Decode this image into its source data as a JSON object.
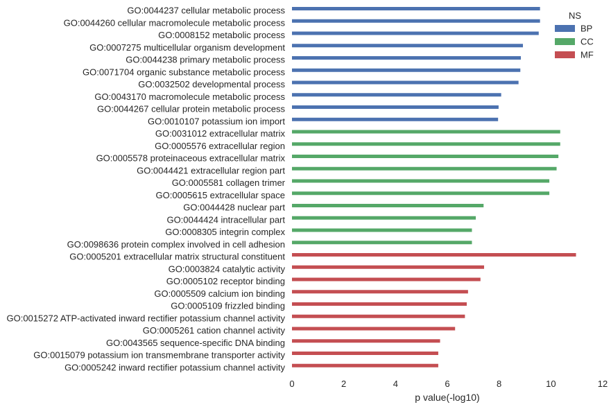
{
  "chart_data": {
    "type": "bar",
    "orientation": "horizontal",
    "xlabel": "p value(-log10)",
    "xlim": [
      0,
      12
    ],
    "xticks": [
      0,
      2,
      4,
      6,
      8,
      10,
      12
    ],
    "grid": false,
    "legend": {
      "title": "NS",
      "placement": "top-right",
      "entries": [
        {
          "name": "BP",
          "color": "#4C72B0"
        },
        {
          "name": "CC",
          "color": "#55A868"
        },
        {
          "name": "MF",
          "color": "#C44E52"
        }
      ]
    },
    "bars": [
      {
        "label": "GO:0044237 cellular metabolic process",
        "value": 9.58,
        "ns": "BP"
      },
      {
        "label": "GO:0044260 cellular macromolecule metabolic process",
        "value": 9.58,
        "ns": "BP"
      },
      {
        "label": "GO:0008152 metabolic process",
        "value": 9.53,
        "ns": "BP"
      },
      {
        "label": "GO:0007275 multicellular organism development",
        "value": 8.92,
        "ns": "BP"
      },
      {
        "label": "GO:0044238 primary metabolic process",
        "value": 8.84,
        "ns": "BP"
      },
      {
        "label": "GO:0071704 organic substance metabolic process",
        "value": 8.82,
        "ns": "BP"
      },
      {
        "label": "GO:0032502 developmental process",
        "value": 8.75,
        "ns": "BP"
      },
      {
        "label": "GO:0043170 macromolecule metabolic process",
        "value": 8.08,
        "ns": "BP"
      },
      {
        "label": "GO:0044267 cellular protein metabolic process",
        "value": 7.98,
        "ns": "BP"
      },
      {
        "label": "GO:0010107 potassium ion import",
        "value": 7.96,
        "ns": "BP"
      },
      {
        "label": "GO:0031012 extracellular matrix",
        "value": 10.36,
        "ns": "CC"
      },
      {
        "label": "GO:0005576 extracellular region",
        "value": 10.36,
        "ns": "CC"
      },
      {
        "label": "GO:0005578 proteinaceous extracellular matrix",
        "value": 10.29,
        "ns": "CC"
      },
      {
        "label": "GO:0044421 extracellular region part",
        "value": 10.22,
        "ns": "CC"
      },
      {
        "label": "GO:0005581 collagen trimer",
        "value": 9.94,
        "ns": "CC"
      },
      {
        "label": "GO:0005615 extracellular space",
        "value": 9.94,
        "ns": "CC"
      },
      {
        "label": "GO:0044428 nuclear part",
        "value": 7.4,
        "ns": "CC"
      },
      {
        "label": "GO:0044424 intracellular part",
        "value": 7.1,
        "ns": "CC"
      },
      {
        "label": "GO:0008305 integrin complex",
        "value": 6.95,
        "ns": "CC"
      },
      {
        "label": "GO:0098636 protein complex involved in cell adhesion",
        "value": 6.95,
        "ns": "CC"
      },
      {
        "label": "GO:0005201 extracellular matrix structural constituent",
        "value": 10.97,
        "ns": "MF"
      },
      {
        "label": "GO:0003824 catalytic activity",
        "value": 7.42,
        "ns": "MF"
      },
      {
        "label": "GO:0005102 receptor binding",
        "value": 7.28,
        "ns": "MF"
      },
      {
        "label": "GO:0005509 calcium ion binding",
        "value": 6.8,
        "ns": "MF"
      },
      {
        "label": "GO:0005109 frizzled binding",
        "value": 6.75,
        "ns": "MF"
      },
      {
        "label": "GO:0015272 ATP-activated inward rectifier potassium channel activity",
        "value": 6.68,
        "ns": "MF"
      },
      {
        "label": "GO:0005261 cation channel activity",
        "value": 6.3,
        "ns": "MF"
      },
      {
        "label": "GO:0043565 sequence-specific DNA binding",
        "value": 5.72,
        "ns": "MF"
      },
      {
        "label": "GO:0015079 potassium ion transmembrane transporter activity",
        "value": 5.65,
        "ns": "MF"
      },
      {
        "label": "GO:0005242 inward rectifier potassium channel activity",
        "value": 5.65,
        "ns": "MF"
      }
    ]
  }
}
